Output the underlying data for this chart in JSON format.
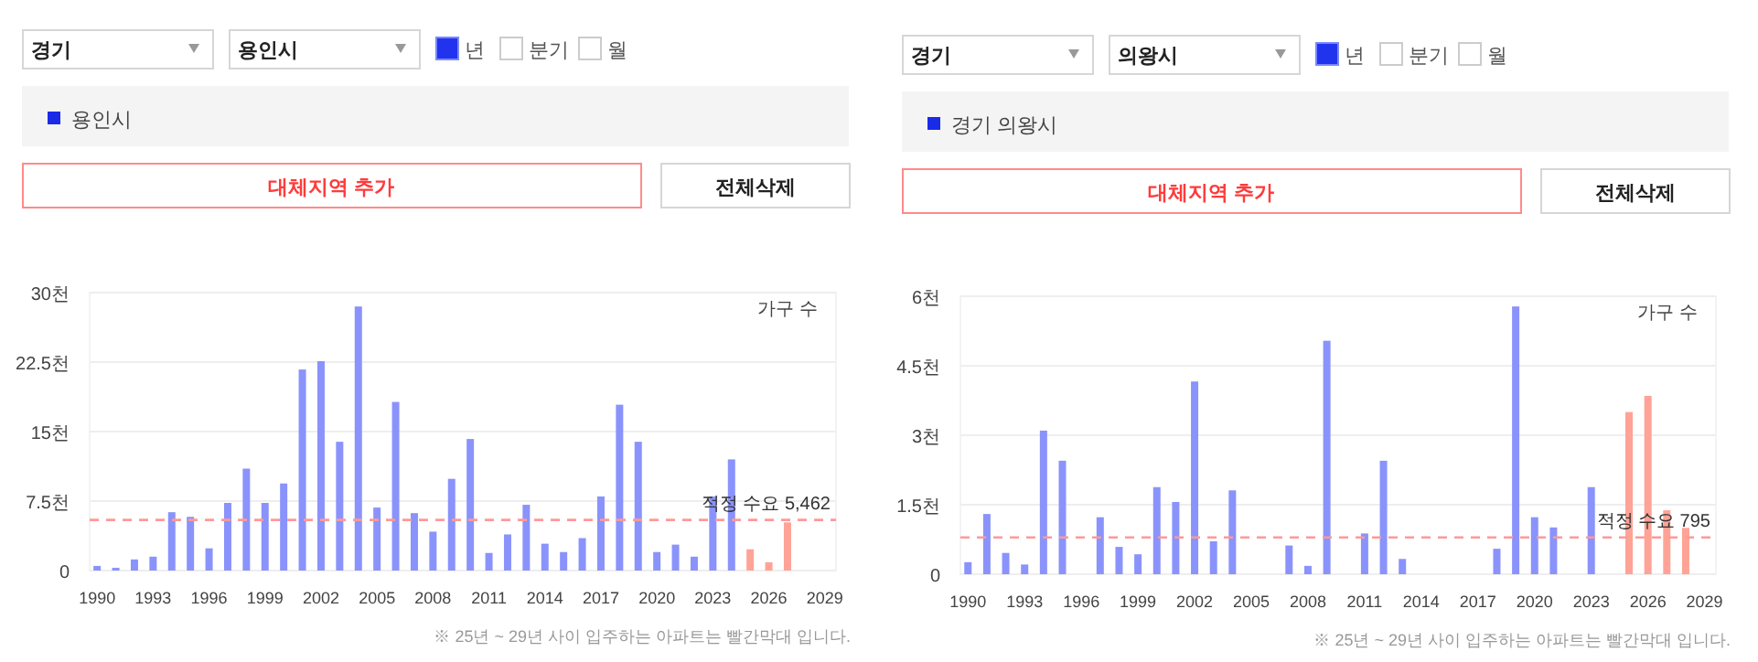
{
  "chart_data": [
    {
      "type": "other",
      "annotations": [
        "경기",
        "용인시",
        "년",
        "분기",
        "월",
        "용인시",
        "대체지역 추가",
        "전체삭제"
      ]
    },
    {
      "type": "bar",
      "ylabel": "가구 수",
      "annotations": [
        "※ 25년 ~ 29년 사이 입주하는 아파트는 빨간막대 입니다."
      ],
      "x": [
        1990,
        1991,
        1992,
        1993,
        1994,
        1995,
        1996,
        1997,
        1998,
        1999,
        2000,
        2001,
        2002,
        2003,
        2004,
        2005,
        2006,
        2007,
        2008,
        2009,
        2010,
        2011,
        2012,
        2013,
        2014,
        2015,
        2016,
        2017,
        2018,
        2019,
        2020,
        2021,
        2022,
        2023,
        2024,
        2025,
        2026,
        2027
      ],
      "values": [
        0.5,
        0.3,
        1.2,
        1.5,
        6.3,
        5.8,
        2.4,
        7.3,
        11,
        7.3,
        9.4,
        21.7,
        22.6,
        13.9,
        28.5,
        6.8,
        18.2,
        6.2,
        4.2,
        9.9,
        14.2,
        1.9,
        3.9,
        7.1,
        2.9,
        2,
        3.5,
        8,
        17.9,
        13.9,
        2,
        2.8,
        1.5,
        8,
        12,
        2.3,
        0.9,
        5.2
      ],
      "colors": [
        "#8a93fb",
        "#8a93fb",
        "#8a93fb",
        "#8a93fb",
        "#8a93fb",
        "#8a93fb",
        "#8a93fb",
        "#8a93fb",
        "#8a93fb",
        "#8a93fb",
        "#8a93fb",
        "#8a93fb",
        "#8a93fb",
        "#8a93fb",
        "#8a93fb",
        "#8a93fb",
        "#8a93fb",
        "#8a93fb",
        "#8a93fb",
        "#8a93fb",
        "#8a93fb",
        "#8a93fb",
        "#8a93fb",
        "#8a93fb",
        "#8a93fb",
        "#8a93fb",
        "#8a93fb",
        "#8a93fb",
        "#8a93fb",
        "#8a93fb",
        "#8a93fb",
        "#8a93fb",
        "#8a93fb",
        "#8a93fb",
        "#8a93fb",
        "#ffa397",
        "#ffa397",
        "#ffa397"
      ],
      "xlim": [
        1989.6,
        2029.6
      ],
      "xticks": [
        1990,
        1993,
        1996,
        1999,
        2002,
        2005,
        2008,
        2011,
        2014,
        2017,
        2020,
        2023,
        2026,
        2029
      ],
      "ylim": [
        0,
        30
      ],
      "yticks": [
        0,
        {
          "value": 7.5,
          "label": "7.5천"
        },
        {
          "value": 15,
          "label": "15천"
        },
        {
          "value": 22.5,
          "label": "22.5천"
        },
        {
          "value": 30,
          "label": "30천"
        }
      ],
      "grid": "y",
      "ref_lines": [
        {
          "axis": "y",
          "value": 5.462,
          "label": "적정 수요 5,462",
          "color": "#ff9999",
          "line_style": "dashed"
        }
      ]
    },
    {
      "type": "other",
      "annotations": [
        "경기",
        "의왕시",
        "년",
        "분기",
        "월",
        "경기 의왕시",
        "대체지역 추가",
        "전체삭제"
      ]
    },
    {
      "type": "bar",
      "ylabel": "가구 수",
      "annotations": [
        "※ 25년 ~ 29년 사이 입주하는 아파트는 빨간막대 입니다."
      ],
      "x": [
        1990,
        1991,
        1992,
        1993,
        1994,
        1995,
        1997,
        1998,
        1999,
        2000,
        2001,
        2002,
        2003,
        2004,
        2007,
        2008,
        2009,
        2011,
        2012,
        2013,
        2018,
        2019,
        2020,
        2021,
        2023,
        2025,
        2026,
        2027,
        2028
      ],
      "values": [
        0.26,
        1.3,
        0.46,
        0.21,
        3.1,
        2.45,
        1.23,
        0.59,
        0.43,
        1.88,
        1.56,
        4.16,
        0.71,
        1.81,
        0.62,
        0.18,
        5.04,
        0.88,
        2.45,
        0.33,
        0.55,
        5.78,
        1.23,
        1.01,
        1.88,
        3.5,
        3.85,
        1.38,
        1.0
      ],
      "colors": [
        "#8a93fb",
        "#8a93fb",
        "#8a93fb",
        "#8a93fb",
        "#8a93fb",
        "#8a93fb",
        "#8a93fb",
        "#8a93fb",
        "#8a93fb",
        "#8a93fb",
        "#8a93fb",
        "#8a93fb",
        "#8a93fb",
        "#8a93fb",
        "#8a93fb",
        "#8a93fb",
        "#8a93fb",
        "#8a93fb",
        "#8a93fb",
        "#8a93fb",
        "#8a93fb",
        "#8a93fb",
        "#8a93fb",
        "#8a93fb",
        "#8a93fb",
        "#ffa397",
        "#ffa397",
        "#ffa397",
        "#ffa397"
      ],
      "xlim": [
        1989.6,
        2029.6
      ],
      "xticks": [
        1990,
        1993,
        1996,
        1999,
        2002,
        2005,
        2008,
        2011,
        2014,
        2017,
        2020,
        2023,
        2026,
        2029
      ],
      "ylim": [
        0,
        6
      ],
      "yticks": [
        0,
        {
          "value": 1.5,
          "label": "1.5천"
        },
        {
          "value": 3,
          "label": "3천"
        },
        {
          "value": 4.5,
          "label": "4.5천"
        },
        {
          "value": 6,
          "label": "6천"
        }
      ],
      "grid": "y",
      "ref_lines": [
        {
          "axis": "y",
          "value": 0.795,
          "label": "적정 수요 795",
          "color": "#ff9999",
          "line_style": "dashed"
        }
      ]
    }
  ]
}
